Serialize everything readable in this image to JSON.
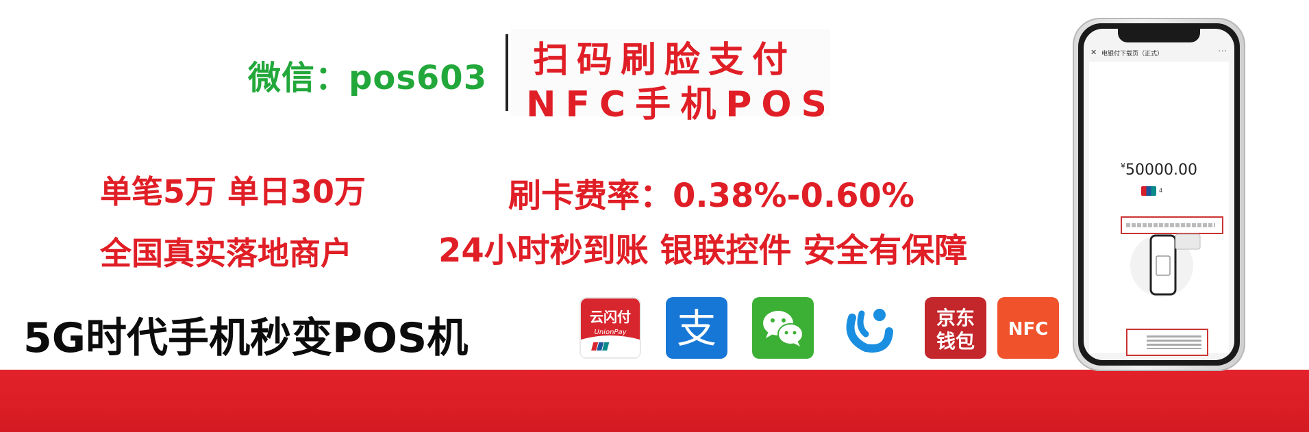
{
  "header": {
    "wechat": "微信：pos603",
    "line1": "扫码刷脸支付",
    "line2": "NFC手机POS"
  },
  "features": {
    "limit": "单笔5万 单日30万",
    "rate": "刷卡费率：0.38%-0.60%",
    "merchants": "全国真实落地商户",
    "settlement": "24小时秒到账  银联控件 安全有保障"
  },
  "slogan": "5G时代手机秒变POS机",
  "payment_icons": [
    {
      "name": "unionpay-cloud-icon",
      "label_cn": "云闪付",
      "label_en": "UnionPay"
    },
    {
      "name": "alipay-icon",
      "label": "支"
    },
    {
      "name": "wechat-pay-icon"
    },
    {
      "name": "bestpay-icon"
    },
    {
      "name": "jd-wallet-icon",
      "label1": "京东",
      "label2": "钱包"
    },
    {
      "name": "nfc-icon",
      "label": "NFC"
    }
  ],
  "phone": {
    "page_title": "电银付下载页（正式）",
    "currency": "¥",
    "amount": "50000.00",
    "card_suffix": "4"
  },
  "colors": {
    "accent_red": "#e01e26",
    "wechat_green": "#22a83a",
    "band_red": "#d41a22"
  }
}
